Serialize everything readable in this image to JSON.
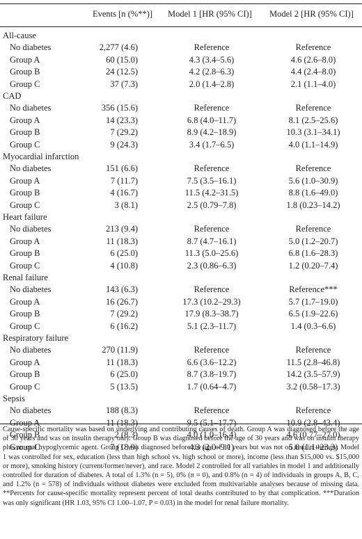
{
  "header": {
    "col1": "Events [n (%**)]",
    "col2": "Model 1 [HR (95% CI)]",
    "col3": "Model 2 [HR (95% CI)]"
  },
  "sections": [
    {
      "title": "All-cause",
      "rows": [
        {
          "label": "No diabetes",
          "events": "2,277 (4.6)",
          "m1": "Reference",
          "m2": "Reference"
        },
        {
          "label": "Group A",
          "events": "60 (15.0)",
          "m1": "4.3 (3.4–5.6)",
          "m2": "4.6 (2.6–8.0)"
        },
        {
          "label": "Group B",
          "events": "24 (12.5)",
          "m1": "4.2 (2.8–6.3)",
          "m2": "4.4 (2.4–8.0)"
        },
        {
          "label": "Group C",
          "events": "37 (7.3)",
          "m1": "2.0 (1.4–2.8)",
          "m2": "2.1 (1.1–4.0)"
        }
      ]
    },
    {
      "title": "CAD",
      "rows": [
        {
          "label": "No diabetes",
          "events": "356 (15.6)",
          "m1": "Reference",
          "m2": "Reference"
        },
        {
          "label": "Group A",
          "events": "14 (23.3)",
          "m1": "6.8 (4.0–11.7)",
          "m2": "8.1 (2.5–25.6)"
        },
        {
          "label": "Group B",
          "events": "7 (29.2)",
          "m1": "8.9 (4.2–18.9)",
          "m2": "10.3 (3.1–34.1)"
        },
        {
          "label": "Group C",
          "events": "9 (24.3)",
          "m1": "3.4 (1.7–6.5)",
          "m2": "4.0 (1.1–14.9)"
        }
      ]
    },
    {
      "title": "Myocardial infarction",
      "rows": [
        {
          "label": "No diabetes",
          "events": "151 (6.6)",
          "m1": "Reference",
          "m2": "Reference"
        },
        {
          "label": "Group A",
          "events": "7 (11.7)",
          "m1": "7.5 (3.5–16.1)",
          "m2": "5.6 (1.0–30.9)"
        },
        {
          "label": "Group B",
          "events": "4 (16.7)",
          "m1": "11.5 (4.2–31.5)",
          "m2": "8.8 (1.6–49.0)"
        },
        {
          "label": "Group C",
          "events": "3 (8.1)",
          "m1": "2.5 (0.79–7.8)",
          "m2": "1.8 (0.23–14.2)"
        }
      ]
    },
    {
      "title": "Heart failure",
      "rows": [
        {
          "label": "No diabetes",
          "events": "213 (9.4)",
          "m1": "Reference",
          "m2": "Reference"
        },
        {
          "label": "Group A",
          "events": "11 (18.3)",
          "m1": "8.7 (4.7–16.1)",
          "m2": "5.0 (1.2–20.7)"
        },
        {
          "label": "Group B",
          "events": "6 (25.0)",
          "m1": "11.3 (5.0–25.6)",
          "m2": "6.8 (1.6–28.3)"
        },
        {
          "label": "Group C",
          "events": "4 (10.8)",
          "m1": "2.3 (0.86–6.3)",
          "m2": "1.2 (0.20–7.4)"
        }
      ]
    },
    {
      "title": "Renal failure",
      "rows": [
        {
          "label": "No diabetes",
          "events": "143 (6.3)",
          "m1": "Reference",
          "m2": "Reference***"
        },
        {
          "label": "Group A",
          "events": "16 (26.7)",
          "m1": "17.3 (10.2–29.3)",
          "m2": "5.7 (1.7–19.0)"
        },
        {
          "label": "Group B",
          "events": "7 (29.2)",
          "m1": "17.9 (8.3–38.7)",
          "m2": "6.5 (1.9–22.6)"
        },
        {
          "label": "Group C",
          "events": "6 (16.2)",
          "m1": "5.1 (2.3–11.7)",
          "m2": "1.4 (0.3–6.6)"
        }
      ]
    },
    {
      "title": "Respiratory failure",
      "rows": [
        {
          "label": "No diabetes",
          "events": "270 (11.9)",
          "m1": "Reference",
          "m2": "Reference"
        },
        {
          "label": "Group A",
          "events": "11 (18.3)",
          "m1": "6.6 (3.6–12.2)",
          "m2": "11.5 (2.8–46.8)"
        },
        {
          "label": "Group B",
          "events": "6 (25.0)",
          "m1": "8.7 (3.8–19.7)",
          "m2": "14.2 (3.5–57.9)"
        },
        {
          "label": "Group C",
          "events": "5 (13.5)",
          "m1": "1.7 (0.64–4.7)",
          "m2": "3.2 (0.58–17.3)"
        }
      ]
    },
    {
      "title": "Sepsis",
      "rows": [
        {
          "label": "No diabetes",
          "events": "188 (8.3)",
          "m1": "Reference",
          "m2": "Reference"
        },
        {
          "label": "Group A",
          "events": "11 (18.3)",
          "m1": "9.5 (5.1–17.7)",
          "m2": "10.9 (2.8–43.4)"
        },
        {
          "label": "Group B",
          "events": "2 (8.3)",
          "m1": "4.0 (1.0–16.4)",
          "m2": "4.6 (0.77–27.0)"
        },
        {
          "label": "Group C",
          "events": "7 (18.9)",
          "m1": "4.3 (2.0–9.1)",
          "m2": "5.0 (1.1–23.3)"
        }
      ]
    }
  ],
  "footnote": "Cause-specific mortality was based on underlying and contributing causes of death. Group A was diagnosed before the age of 30 years and was on insulin therapy only. Group B was diagnosed before the age of 30 years and was on insulin therapy plus an oral hypoglycemic agent. Group C was diagnosed before the age of 30 years but was not on insulin therapy. Model 1 was controlled for sex, education (less than high school vs. high school or more), income (less than $15,000 vs. $15,000 or more), smoking history (current/former/never), and race. Model 2 controlled for all variables in model 1 and additionally controlled for duration of diabetes. A total of 1.3% (n = 5), 0% (n = 0), and 0.8% (n = 4) of individuals in groups A, B, C, and 1.2% (n = 578) of individuals without diabetes were excluded from multivariable analyses because of missing data. **Percents for cause-specific mortality represent percent of total deaths contributed to by that complication. ***Duration was only significant (HR 1.03, 95% CI 1.00–1.07, P = 0.03) in the model for renal failure mortality."
}
